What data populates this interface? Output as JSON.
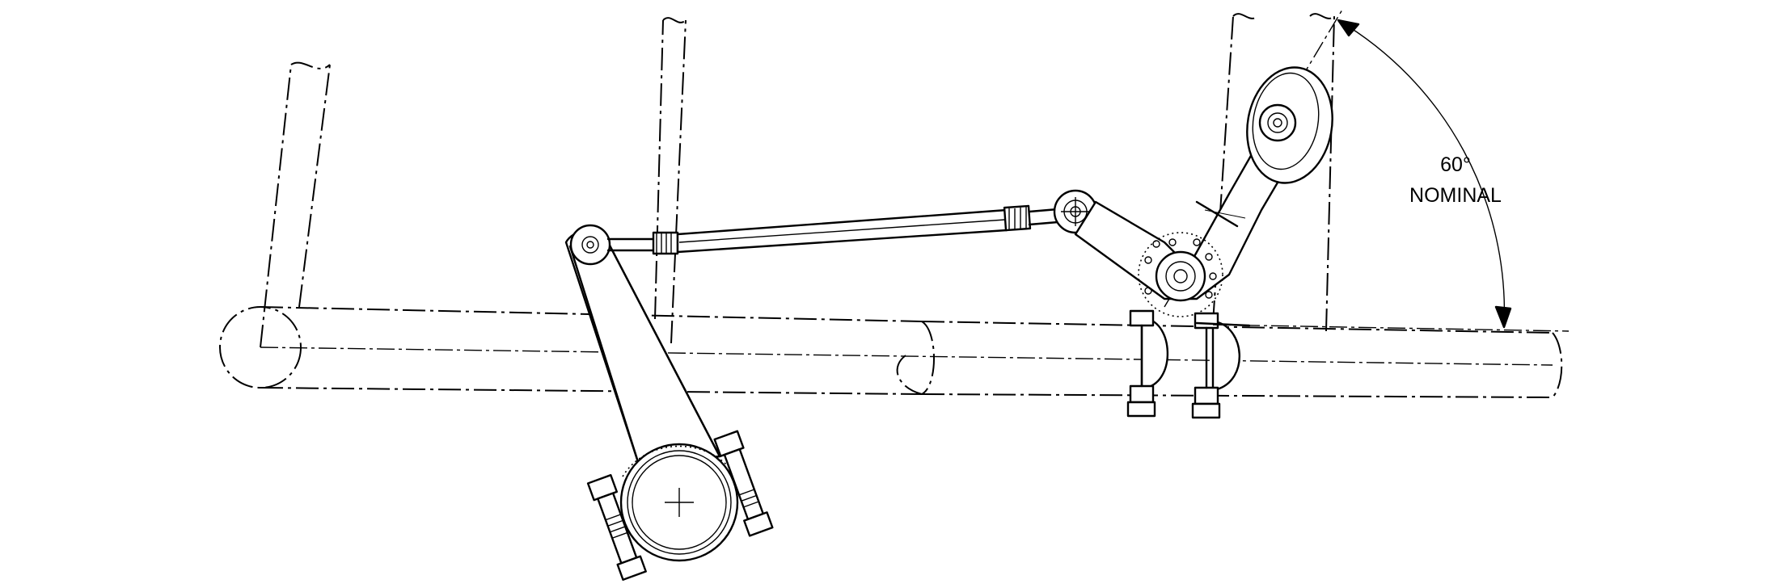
{
  "drawing": {
    "dimension": {
      "angle_value": "60°",
      "angle_note": "NOMINAL"
    }
  }
}
